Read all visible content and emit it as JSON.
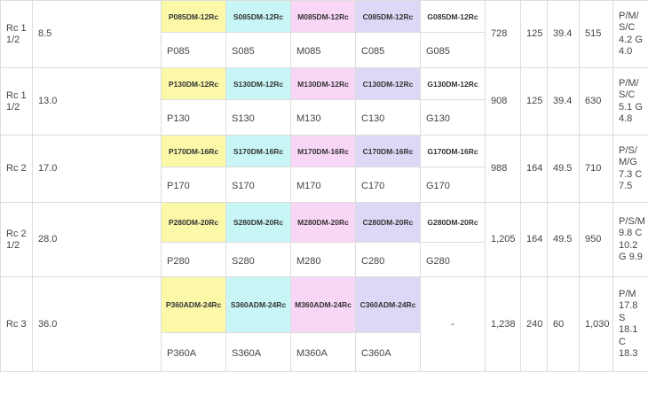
{
  "colors": {
    "P": "#fbf8a8",
    "S": "#c8f6f6",
    "M": "#f8d6f6",
    "C": "#dcd8f6",
    "G": "#ffffff"
  },
  "rows": [
    {
      "size": "Rc 1 1/2",
      "value": "8.5",
      "codes": [
        "P085DM-12Rc",
        "S085DM-12Rc",
        "M085DM-12Rc",
        "C085DM-12Rc",
        "G085DM-12Rc"
      ],
      "models": [
        "P085",
        "S085",
        "M085",
        "C085",
        "G085"
      ],
      "n1": "728",
      "n2": "125",
      "n3": "39.4",
      "n4": "515",
      "grade": "P/M/ S/C 4.2 G 4.0"
    },
    {
      "size": "Rc 1 1/2",
      "value": "13.0",
      "codes": [
        "P130DM-12Rc",
        "S130DM-12Rc",
        "M130DM-12Rc",
        "C130DM-12Rc",
        "G130DM-12Rc"
      ],
      "models": [
        "P130",
        "S130",
        "M130",
        "C130",
        "G130"
      ],
      "n1": "908",
      "n2": "125",
      "n3": "39.4",
      "n4": "630",
      "grade": "P/M/ S/C 5.1 G 4.8"
    },
    {
      "size": "Rc 2",
      "value": "17.0",
      "codes": [
        "P170DM-16Rc",
        "S170DM-16Rc",
        "M170DM-16Rc",
        "C170DM-16Rc",
        "G170DM-16Rc"
      ],
      "models": [
        "P170",
        "S170",
        "M170",
        "C170",
        "G170"
      ],
      "n1": "988",
      "n2": "164",
      "n3": "49.5",
      "n4": "710",
      "grade": "P/S/ M/G 7.3 C 7.5"
    },
    {
      "size": "Rc 2 1/2",
      "value": "28.0",
      "codes": [
        "P280DM-20Rc",
        "S280DM-20Rc",
        "M280DM-20Rc",
        "C280DM-20Rc",
        "G280DM-20Rc"
      ],
      "models": [
        "P280",
        "S280",
        "M280",
        "C280",
        "G280"
      ],
      "n1": "1,205",
      "n2": "164",
      "n3": "49.5",
      "n4": "950",
      "grade": "P/S/M 9.8 C 10.2 G 9.9"
    },
    {
      "size": "Rc 3",
      "value": "36.0",
      "codes": [
        "P360ADM-24Rc",
        "S360ADM-24Rc",
        "M360ADM-24Rc",
        "C360ADM-24Rc"
      ],
      "g_placeholder": "-",
      "models": [
        "P360A",
        "S360A",
        "M360A",
        "C360A"
      ],
      "n1": "1,238",
      "n2": "240",
      "n3": "60",
      "n4": "1,030",
      "grade": "P/M 17.8 S 18.1 C 18.3"
    }
  ]
}
